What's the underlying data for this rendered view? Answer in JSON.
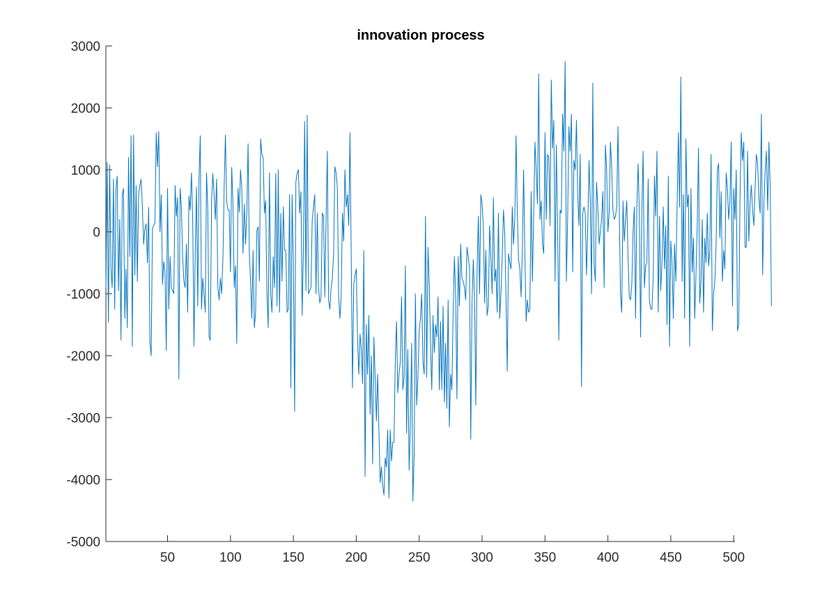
{
  "chart_data": {
    "type": "line",
    "title": "innovation process",
    "xlabel": "",
    "ylabel": "",
    "xlim": [
      1,
      501
    ],
    "ylim": [
      -5000,
      3000
    ],
    "xticks": [
      50,
      100,
      150,
      200,
      250,
      300,
      350,
      400,
      450,
      500
    ],
    "yticks": [
      3000,
      2000,
      1000,
      0,
      -1000,
      -2000,
      -3000,
      -4000,
      -5000
    ],
    "xtick_labels": [
      "50",
      "100",
      "150",
      "200",
      "250",
      "300",
      "350",
      "400",
      "450",
      "500"
    ],
    "ytick_labels": [
      "3000",
      "2000",
      "1000",
      "0",
      "-1000",
      "-2000",
      "-3000",
      "-4000",
      "-5000"
    ],
    "grid": false,
    "legend": "none",
    "series": [
      {
        "color": "#0072BD",
        "x_start": 1,
        "x_step": 1,
        "values": [
          -900,
          1120,
          -1460,
          1080,
          -600,
          -900,
          850,
          -1250,
          700,
          900,
          -950,
          200,
          -1750,
          600,
          700,
          -1400,
          -600,
          -1550,
          1200,
          -400,
          1550,
          -1850,
          1560,
          -700,
          750,
          -800,
          600,
          750,
          850,
          400,
          -200,
          50,
          130,
          -500,
          390,
          -1800,
          -2000,
          50,
          100,
          150,
          1600,
          1050,
          1620,
          0,
          600,
          -850,
          -480,
          -650,
          -1920,
          700,
          -1250,
          -400,
          -900,
          -950,
          -1000,
          750,
          250,
          550,
          -2380,
          700,
          400,
          -400,
          -800,
          -900,
          -200,
          -1300,
          580,
          350,
          950,
          200,
          -1850,
          -350,
          720,
          -1200,
          850,
          1550,
          -1250,
          -750,
          -1000,
          -1300,
          950,
          350,
          -1700,
          -1750,
          500,
          940,
          600,
          200,
          850,
          -900,
          -1100,
          -750,
          -1000,
          -450,
          720,
          1560,
          500,
          350,
          350,
          -650,
          1040,
          450,
          -900,
          -550,
          -1800,
          700,
          320,
          1000,
          700,
          -350,
          450,
          -200,
          300,
          1420,
          -350,
          -800,
          -1400,
          -300,
          -1550,
          -1300,
          20,
          80,
          -800,
          1500,
          1250,
          1200,
          300,
          500,
          -1000,
          -1550,
          950,
          -1000,
          -1300,
          -400,
          -900,
          940,
          -1200,
          1000,
          -1300,
          300,
          -800,
          400,
          -300,
          -300,
          -1300,
          -1250,
          600,
          -2520,
          600,
          -500,
          -2900,
          800,
          950,
          1000,
          300,
          650,
          -1350,
          -250,
          1780,
          -950,
          1880,
          -1000,
          -950,
          -900,
          200,
          400,
          600,
          -1000,
          300,
          -900,
          -1150,
          -1050,
          300,
          250,
          -1050,
          200,
          1300,
          -1100,
          -1250,
          -900,
          -750,
          -350,
          1050,
          950,
          700,
          -1050,
          -1400,
          -1050,
          300,
          -150,
          1000,
          400,
          600,
          100,
          1600,
          -400,
          -2520,
          -850,
          -700,
          -600,
          -1700,
          -2300,
          -1650,
          -1900,
          -2450,
          -300,
          -3950,
          -1500,
          -2300,
          -1350,
          -2950,
          -2000,
          -3750,
          -1700,
          -2350,
          -3050,
          -2300,
          -3200,
          -4050,
          -3800,
          -4100,
          -4250,
          -3650,
          -3800,
          -3200,
          -4300,
          -3200,
          -3700,
          -3400,
          -3400,
          -2100,
          -1450,
          -2600,
          -2300,
          -2100,
          -1050,
          -2550,
          -2350,
          -550,
          -3250,
          -1900,
          -3850,
          -3100,
          -1800,
          -4350,
          -3600,
          -1000,
          -2800,
          -2350,
          -1600,
          -1400,
          -1000,
          -2100,
          -2300,
          250,
          -2350,
          -250,
          -850,
          -1800,
          -2550,
          -1350,
          -1950,
          -1500,
          -1700,
          -1050,
          -2550,
          -1450,
          -2550,
          -1200,
          -2750,
          -1800,
          -2850,
          -1100,
          -3150,
          -2300,
          -2550,
          -1300,
          -400,
          -1050,
          -2700,
          -400,
          -1200,
          -200,
          -750,
          -800,
          -900,
          -1100,
          -250,
          -400,
          -600,
          -3350,
          -1150,
          -450,
          -1050,
          -2800,
          -650,
          250,
          -1000,
          600,
          450,
          100,
          -1150,
          -300,
          -1350,
          -1200,
          100,
          -400,
          -1000,
          550,
          -800,
          -600,
          -1300,
          300,
          -1400,
          -1000,
          -400,
          350,
          0,
          -1050,
          -2250,
          -350,
          -500,
          -600,
          400,
          -200,
          200,
          1550,
          300,
          -450,
          -600,
          -1050,
          -300,
          1000,
          -350,
          -1450,
          -1100,
          -1300,
          -1250,
          650,
          -800,
          250,
          1450,
          1000,
          450,
          2550,
          200,
          500,
          -200,
          -350,
          1600,
          200,
          1250,
          1200,
          100,
          2450,
          1350,
          1800,
          -800,
          1400,
          100,
          -1750,
          350,
          300,
          1900,
          1300,
          2750,
          -800,
          200,
          1700,
          1300,
          1900,
          -650,
          1150,
          1000,
          1800,
          600,
          100,
          1250,
          -2500,
          300,
          400,
          300,
          -700,
          100,
          1150,
          500,
          -1000,
          2400,
          -500,
          -800,
          800,
          400,
          -200,
          0,
          200,
          650,
          -900,
          1400,
          1000,
          0,
          300,
          1450,
          1050,
          350,
          200,
          250,
          400,
          1700,
          400,
          -1000,
          -1300,
          500,
          -150,
          200,
          500,
          -400,
          -1050,
          -1100,
          -850,
          0,
          400,
          -1400,
          400,
          1100,
          300,
          -1700,
          400,
          1300,
          -900,
          -550,
          -500,
          850,
          -1100,
          -1250,
          -1250,
          -750,
          900,
          250,
          1300,
          -1300,
          250,
          -950,
          -500,
          400,
          -600,
          100,
          -1500,
          900,
          -1850,
          -150,
          -500,
          -1400,
          -200,
          -800,
          400,
          1600,
          400,
          2500,
          -800,
          600,
          -1400,
          1500,
          400,
          600,
          -1850,
          700,
          -650,
          -100,
          -1400,
          -700,
          100,
          1350,
          -1150,
          -800,
          200,
          -1300,
          -100,
          -500,
          300,
          -550,
          -300,
          1250,
          -1600,
          -1000,
          -800,
          -200,
          1000,
          1100,
          -100,
          650,
          -800,
          -300,
          -600,
          950,
          700,
          200,
          500,
          1450,
          -1200,
          700,
          200,
          1000,
          -1600,
          -1500,
          550,
          1600,
          1150,
          1450,
          -250,
          -250,
          1300,
          -150,
          450,
          750,
          350,
          100,
          700,
          1250,
          1100,
          550,
          300,
          1900,
          -700,
          450,
          1000,
          1300,
          350,
          1450,
          700,
          -1200
        ]
      }
    ]
  }
}
